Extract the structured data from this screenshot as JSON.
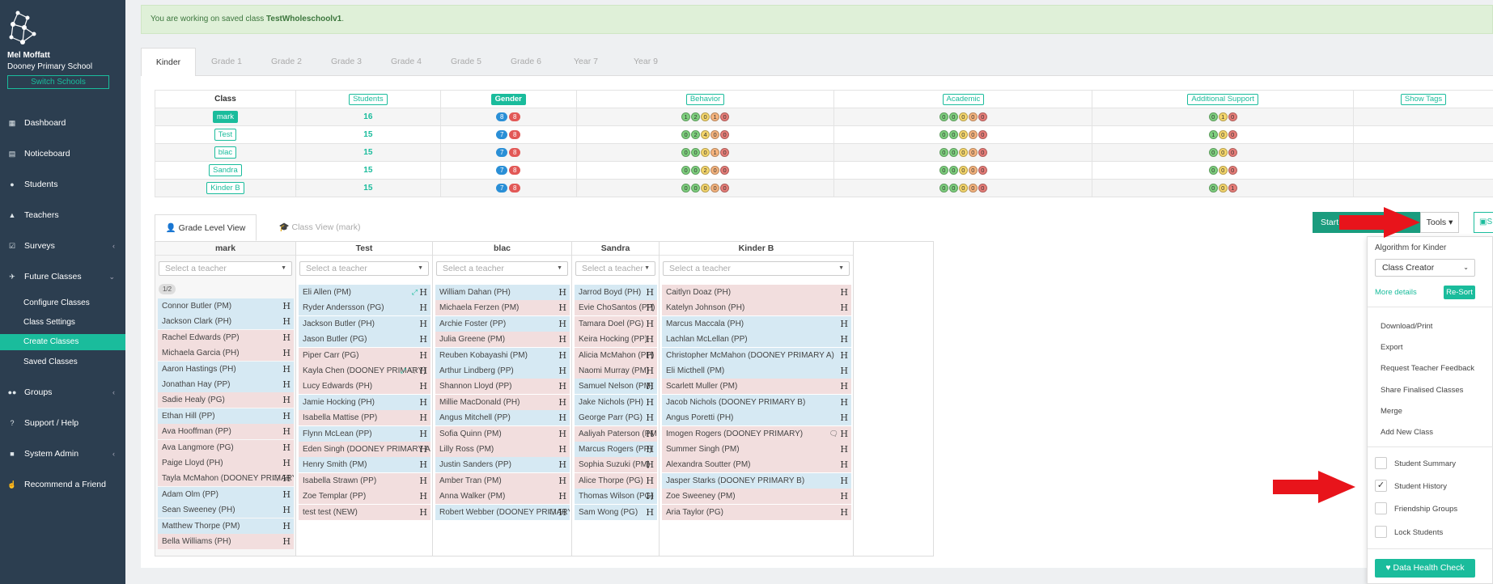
{
  "user": {
    "name": "Mel Moffatt",
    "school": "Dooney Primary School",
    "switch_label": "Switch Schools"
  },
  "nav": {
    "dashboard": "Dashboard",
    "noticeboard": "Noticeboard",
    "students": "Students",
    "teachers": "Teachers",
    "surveys": "Surveys",
    "future_classes": "Future Classes",
    "configure_classes": "Configure Classes",
    "class_settings": "Class Settings",
    "create_classes": "Create Classes",
    "saved_classes": "Saved Classes",
    "groups": "Groups",
    "support": "Support / Help",
    "system_admin": "System Admin",
    "recommend": "Recommend a Friend"
  },
  "alert": {
    "prefix": "You are working on saved class ",
    "class_name": "TestWholeschoolv1",
    "suffix": "."
  },
  "grade_tabs": [
    "Kinder",
    "Grade 1",
    "Grade 2",
    "Grade 3",
    "Grade 4",
    "Grade 5",
    "Grade 6",
    "Year 7",
    "Year 9"
  ],
  "summary": {
    "headers": {
      "class": "Class",
      "students": "Students",
      "gender": "Gender",
      "behavior": "Behavior",
      "academic": "Academic",
      "support": "Additional Support",
      "show_tags": "Show Tags"
    },
    "rows": [
      {
        "name": "mark",
        "count": "16",
        "gender": [
          "8",
          "8"
        ],
        "behavior": [
          "1",
          "2",
          "0",
          "1",
          "0"
        ],
        "academic": [
          "0",
          "0",
          "0",
          "0",
          "0"
        ],
        "support": [
          "0",
          "1",
          "0"
        ]
      },
      {
        "name": "Test",
        "count": "15",
        "gender": [
          "7",
          "8"
        ],
        "behavior": [
          "0",
          "2",
          "4",
          "0",
          "0"
        ],
        "academic": [
          "0",
          "0",
          "0",
          "0",
          "0"
        ],
        "support": [
          "1",
          "0",
          "0"
        ]
      },
      {
        "name": "blac",
        "count": "15",
        "gender": [
          "7",
          "8"
        ],
        "behavior": [
          "0",
          "0",
          "0",
          "1",
          "0"
        ],
        "academic": [
          "0",
          "0",
          "0",
          "0",
          "0"
        ],
        "support": [
          "0",
          "0",
          "0"
        ]
      },
      {
        "name": "Sandra",
        "count": "15",
        "gender": [
          "7",
          "8"
        ],
        "behavior": [
          "0",
          "0",
          "2",
          "0",
          "0"
        ],
        "academic": [
          "0",
          "0",
          "0",
          "0",
          "0"
        ],
        "support": [
          "0",
          "0",
          "0"
        ]
      },
      {
        "name": "Kinder B",
        "count": "15",
        "gender": [
          "7",
          "8"
        ],
        "behavior": [
          "0",
          "0",
          "0",
          "0",
          "0"
        ],
        "academic": [
          "0",
          "0",
          "0",
          "0",
          "0"
        ],
        "support": [
          "0",
          "0",
          "1"
        ]
      }
    ]
  },
  "view_tabs": {
    "grade_level": "Grade Level View",
    "class_view": "Class View (mark)"
  },
  "buttons": {
    "start": "Start",
    "tools": "Tools",
    "save": "S"
  },
  "teacher_placeholder": "Select a teacher",
  "page_indicator": "1/2",
  "h_glyph": "H",
  "columns": [
    {
      "name": "mark",
      "students": [
        [
          "Connor Butler (PM)",
          "m"
        ],
        [
          "Jackson Clark (PH)",
          "m"
        ],
        [
          "Rachel Edwards (PP)",
          "f"
        ],
        [
          "Michaela Garcia (PH)",
          "f"
        ],
        [
          "Aaron Hastings (PH)",
          "m"
        ],
        [
          "Jonathan Hay (PP)",
          "m"
        ],
        [
          "Sadie Healy (PG)",
          "f"
        ],
        [
          "Ethan Hill (PP)",
          "m"
        ],
        [
          "Ava Hooffman (PP)",
          "f"
        ],
        [
          "Ava Langmore (PG)",
          "f"
        ],
        [
          "Paige Lloyd (PH)",
          "f"
        ],
        [
          "Tayla McMahon (DOONEY PRIMARY)",
          "f"
        ],
        [
          "Adam Olm (PP)",
          "m"
        ],
        [
          "Sean Sweeney (PH)",
          "m"
        ],
        [
          "Matthew Thorpe (PM)",
          "m"
        ],
        [
          "Bella Williams (PH)",
          "f"
        ]
      ]
    },
    {
      "name": "Test",
      "students": [
        [
          "Eli Allen (PM)",
          "m"
        ],
        [
          "Ryder Andersson (PG)",
          "m"
        ],
        [
          "Jackson Butler (PH)",
          "m"
        ],
        [
          "Jason Butler (PG)",
          "m"
        ],
        [
          "Piper Carr (PG)",
          "f"
        ],
        [
          "Kayla Chen (DOONEY PRIMARY)",
          "f"
        ],
        [
          "Lucy Edwards (PH)",
          "f"
        ],
        [
          "Jamie Hocking (PH)",
          "m"
        ],
        [
          "Isabella Mattise (PP)",
          "f"
        ],
        [
          "Flynn McLean (PP)",
          "m"
        ],
        [
          "Eden Singh (DOONEY PRIMARY A)",
          "f"
        ],
        [
          "Henry Smith (PM)",
          "m"
        ],
        [
          "Isabella Strawn (PP)",
          "f"
        ],
        [
          "Zoe Templar (PP)",
          "f"
        ],
        [
          "test test (NEW)",
          "f"
        ]
      ]
    },
    {
      "name": "blac",
      "students": [
        [
          "William Dahan (PH)",
          "m"
        ],
        [
          "Michaela Ferzen (PM)",
          "f"
        ],
        [
          "Archie Foster (PP)",
          "m"
        ],
        [
          "Julia Greene (PM)",
          "f"
        ],
        [
          "Reuben Kobayashi (PM)",
          "m"
        ],
        [
          "Arthur Lindberg (PP)",
          "m"
        ],
        [
          "Shannon Lloyd (PP)",
          "f"
        ],
        [
          "Millie MacDonald (PH)",
          "f"
        ],
        [
          "Angus Mitchell (PP)",
          "m"
        ],
        [
          "Sofia Quinn (PM)",
          "f"
        ],
        [
          "Lilly Ross (PM)",
          "f"
        ],
        [
          "Justin Sanders (PP)",
          "m"
        ],
        [
          "Amber Tran (PM)",
          "f"
        ],
        [
          "Anna Walker (PM)",
          "f"
        ],
        [
          "Robert Webber (DOONEY PRIMARY)",
          "m"
        ]
      ]
    },
    {
      "name": "Sandra",
      "students": [
        [
          "Jarrod Boyd (PH)",
          "m"
        ],
        [
          "Evie ChoSantos (PP)",
          "f"
        ],
        [
          "Tamara Doel (PG)",
          "f"
        ],
        [
          "Keira Hocking (PP)",
          "f"
        ],
        [
          "Alicia McMahon (PP)",
          "f"
        ],
        [
          "Naomi Murray (PM)",
          "f"
        ],
        [
          "Samuel Nelson (PM)",
          "m"
        ],
        [
          "Jake Nichols (PH)",
          "m"
        ],
        [
          "George Parr (PG)",
          "m"
        ],
        [
          "Aaliyah Paterson (PM)",
          "f"
        ],
        [
          "Marcus Rogers (PP)",
          "m"
        ],
        [
          "Sophia Suzuki (PM)",
          "f"
        ],
        [
          "Alice Thorpe (PG)",
          "f"
        ],
        [
          "Thomas Wilson (PG)",
          "m"
        ],
        [
          "Sam Wong (PG)",
          "m"
        ]
      ]
    },
    {
      "name": "Kinder B",
      "students": [
        [
          "Caitlyn Doaz (PH)",
          "f"
        ],
        [
          "Katelyn Johnson (PH)",
          "f"
        ],
        [
          "Marcus Maccala (PH)",
          "m"
        ],
        [
          "Lachlan McLellan (PP)",
          "m"
        ],
        [
          "Christopher McMahon (DOONEY PRIMARY A)",
          "m"
        ],
        [
          "Eli Micthell (PM)",
          "m"
        ],
        [
          "Scarlett Muller (PM)",
          "f"
        ],
        [
          "Jacob Nichols (DOONEY PRIMARY B)",
          "m"
        ],
        [
          "Angus Poretti (PH)",
          "m"
        ],
        [
          "Imogen Rogers (DOONEY PRIMARY)",
          "f"
        ],
        [
          "Summer Singh (PM)",
          "f"
        ],
        [
          "Alexandra Soutter (PM)",
          "f"
        ],
        [
          "Jasper Starks (DOONEY PRIMARY B)",
          "m"
        ],
        [
          "Zoe Sweeney (PM)",
          "f"
        ],
        [
          "Aria Taylor (PG)",
          "f"
        ]
      ]
    }
  ],
  "tools_menu": {
    "algorithm_label": "Algorithm for Kinder",
    "algorithm_value": "Class Creator",
    "more_details": "More details",
    "resort": "Re-Sort",
    "items": [
      "Download/Print",
      "Export",
      "Request Teacher Feedback",
      "Share Finalised Classes",
      "Merge",
      "Add New Class"
    ],
    "checks": [
      {
        "label": "Student Summary",
        "checked": false
      },
      {
        "label": "Student History",
        "checked": true
      },
      {
        "label": "Friendship Groups",
        "checked": false
      },
      {
        "label": "Lock Students",
        "checked": false
      }
    ],
    "health": "Data Health Check"
  },
  "colors": {
    "sidebar": "#2c3e50",
    "accent": "#1abc9c",
    "male_row": "#d6e9f3",
    "female_row": "#f2dede",
    "arrow": "#e8141b"
  }
}
